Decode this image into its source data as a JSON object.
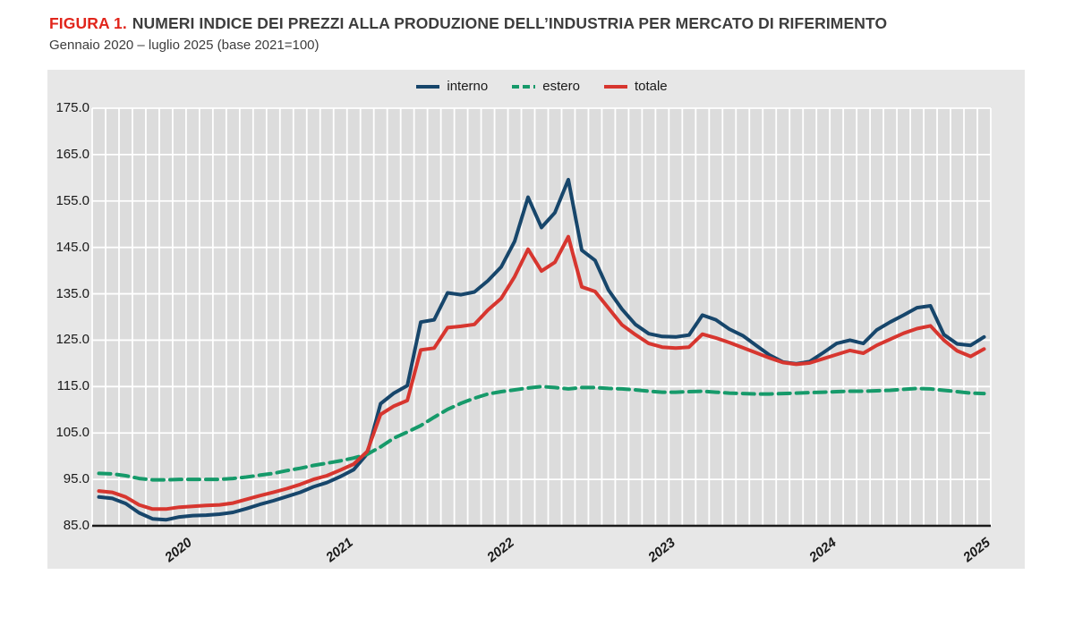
{
  "figure": {
    "label": "FIGURA 1.",
    "title": "NUMERI INDICE DEI PREZZI ALLA PRODUZIONE DELL’INDUSTRIA PER MERCATO DI RIFERIMENTO",
    "subtitle": "Gennaio 2020 – luglio 2025 (base 2021=100)"
  },
  "colors": {
    "figure_label_red": "#e1251b",
    "title_gray": "#3d3d3d",
    "outer_background": "#e7e7e7",
    "plot_background": "#dcdcdc",
    "gridline": "#ffffff",
    "axis_line": "#1a1a1a",
    "interno": "#17466b",
    "estero": "#169a6a",
    "totale": "#d7362f"
  },
  "chart_data": {
    "type": "line",
    "title": "Numeri indice dei prezzi alla produzione dell’industria per mercato di riferimento",
    "frequency": "monthly",
    "x_start": "2020-01",
    "x_end": "2025-07",
    "x_tick_labels": [
      "2020",
      "2021",
      "2022",
      "2023",
      "2024",
      "2025"
    ],
    "y_ticks": [
      85,
      95,
      105,
      115,
      125,
      135,
      145,
      155,
      165,
      175
    ],
    "ylim": [
      85,
      175
    ],
    "grid": true,
    "legend_position": "top-center",
    "series": [
      {
        "name": "interno",
        "color": "#17466b",
        "dash": "solid",
        "values": [
          91.2,
          90.9,
          89.8,
          87.8,
          86.5,
          86.3,
          86.9,
          87.2,
          87.3,
          87.5,
          87.9,
          88.7,
          89.6,
          90.4,
          91.3,
          92.2,
          93.4,
          94.3,
          95.6,
          97.1,
          100.5,
          111.3,
          113.6,
          115.2,
          128.9,
          129.4,
          135.2,
          134.8,
          135.4,
          137.8,
          140.8,
          146.3,
          155.8,
          149.3,
          152.5,
          159.6,
          144.4,
          142.2,
          135.8,
          131.7,
          128.4,
          126.4,
          125.8,
          125.7,
          126.1,
          130.4,
          129.4,
          127.4,
          126.0,
          123.9,
          121.8,
          120.3,
          119.9,
          120.4,
          122.3,
          124.3,
          125.0,
          124.3,
          127.2,
          128.9,
          130.4,
          132.0,
          132.4,
          126.2,
          124.2,
          123.9,
          125.7
        ]
      },
      {
        "name": "estero",
        "color": "#169a6a",
        "dash": "dashed",
        "values": [
          96.3,
          96.2,
          95.8,
          95.2,
          94.9,
          94.9,
          95.0,
          95.0,
          95.0,
          95.0,
          95.2,
          95.5,
          95.9,
          96.3,
          96.9,
          97.4,
          98.0,
          98.5,
          99.0,
          99.6,
          100.4,
          102.0,
          103.9,
          105.2,
          106.6,
          108.4,
          110.1,
          111.4,
          112.5,
          113.4,
          113.9,
          114.3,
          114.7,
          115.0,
          114.8,
          114.5,
          114.8,
          114.8,
          114.6,
          114.5,
          114.3,
          114.0,
          113.8,
          113.8,
          113.9,
          114.0,
          113.8,
          113.6,
          113.5,
          113.4,
          113.4,
          113.5,
          113.6,
          113.7,
          113.8,
          113.9,
          114.0,
          114.0,
          114.1,
          114.2,
          114.4,
          114.6,
          114.5,
          114.2,
          113.9,
          113.6,
          113.5
        ]
      },
      {
        "name": "totale",
        "color": "#d7362f",
        "dash": "solid",
        "values": [
          92.5,
          92.2,
          91.2,
          89.5,
          88.6,
          88.6,
          89.0,
          89.2,
          89.4,
          89.5,
          89.9,
          90.7,
          91.5,
          92.2,
          93.0,
          93.9,
          95.0,
          95.8,
          97.0,
          98.3,
          101.0,
          109.0,
          110.8,
          112.0,
          122.9,
          123.3,
          127.7,
          128.0,
          128.4,
          131.5,
          134.0,
          138.7,
          144.6,
          139.9,
          141.8,
          147.3,
          136.5,
          135.5,
          131.9,
          128.3,
          126.2,
          124.3,
          123.5,
          123.3,
          123.5,
          126.3,
          125.5,
          124.5,
          123.4,
          122.3,
          121.2,
          120.2,
          119.8,
          120.1,
          121.0,
          121.9,
          122.8,
          122.2,
          123.9,
          125.2,
          126.5,
          127.5,
          128.1,
          125.0,
          122.7,
          121.5,
          123.1
        ]
      }
    ]
  }
}
